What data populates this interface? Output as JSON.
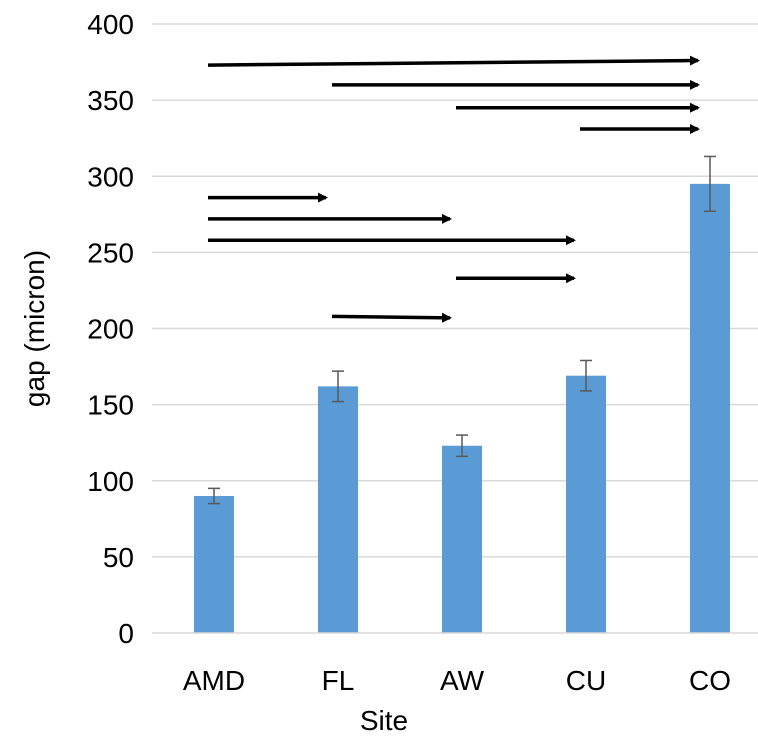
{
  "chart_data": {
    "type": "bar",
    "xlabel": "Site",
    "ylabel": "gap (micron)",
    "categories": [
      "AMD",
      "FL",
      "AW",
      "CU",
      "CO"
    ],
    "values": [
      90,
      162,
      123,
      169,
      295
    ],
    "error": [
      5,
      10,
      7,
      10,
      18
    ],
    "ylim": [
      0,
      400
    ],
    "yticks": [
      0,
      50,
      100,
      150,
      200,
      250,
      300,
      350,
      400
    ],
    "grid": true,
    "bar_color": "#5b9bd5",
    "error_color": "#595959",
    "arrow_color": "#000000",
    "comparison_arrows": [
      {
        "from": "AMD",
        "to": "CO",
        "y_start": 373,
        "y_end": 376
      },
      {
        "from": "FL",
        "to": "CO",
        "y_start": 360,
        "y_end": 360
      },
      {
        "from": "AW",
        "to": "CO",
        "y_start": 345,
        "y_end": 345
      },
      {
        "from": "CU",
        "to": "CO",
        "y_start": 331,
        "y_end": 331
      },
      {
        "from": "AMD",
        "to": "FL",
        "y_start": 286,
        "y_end": 286
      },
      {
        "from": "AMD",
        "to": "AW",
        "y_start": 272,
        "y_end": 272
      },
      {
        "from": "AMD",
        "to": "CU",
        "y_start": 258,
        "y_end": 258
      },
      {
        "from": "AW",
        "to": "CU",
        "y_start": 233,
        "y_end": 233
      },
      {
        "from": "FL",
        "to": "AW",
        "y_start": 208,
        "y_end": 207
      }
    ]
  }
}
